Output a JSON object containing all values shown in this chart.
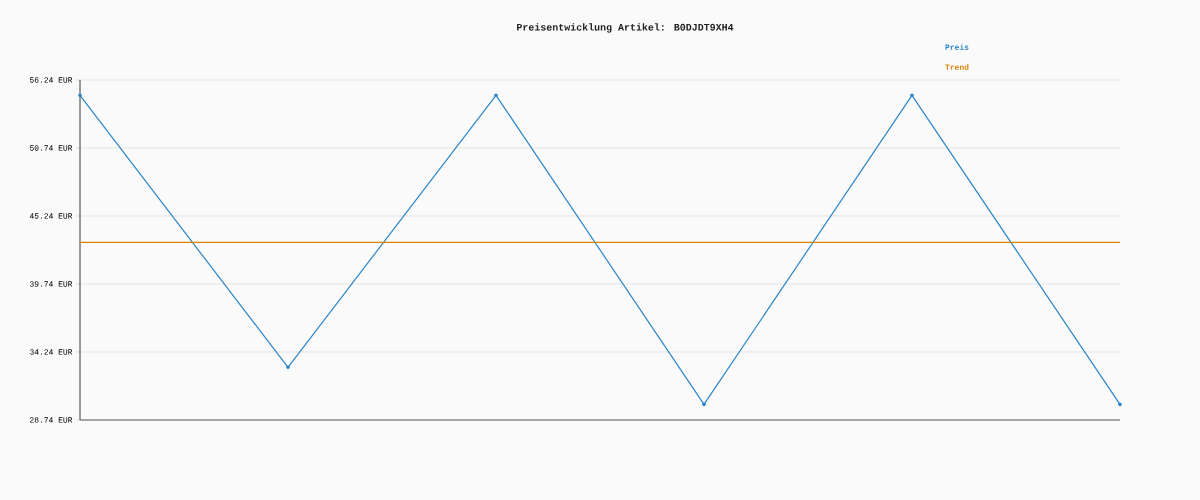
{
  "chart_data": {
    "type": "line",
    "title": "Preisentwicklung Artikel: B0DJDT9XH4",
    "categories": [
      null,
      null,
      null,
      null,
      null,
      null
    ],
    "series": [
      {
        "name": "Preis",
        "color": "#2a85c8",
        "marker": "circle",
        "values": [
          55.0,
          33.0,
          55.0,
          30.0,
          55.0,
          30.0
        ]
      },
      {
        "name": "Trend",
        "color": "#d98200",
        "marker": "none",
        "values": [
          43.1,
          43.1,
          43.1,
          43.1,
          43.1,
          43.1
        ]
      }
    ],
    "ylim": [
      28.74,
      56.24
    ],
    "yticks": [
      {
        "value": 28.74,
        "label": "28.74 EUR"
      },
      {
        "value": 34.24,
        "label": "34.24 EUR"
      },
      {
        "value": 39.74,
        "label": "39.74 EUR"
      },
      {
        "value": 45.24,
        "label": "45.24 EUR"
      },
      {
        "value": 50.74,
        "label": "50.74 EUR"
      },
      {
        "value": 56.24,
        "label": "56.24 EUR"
      }
    ],
    "grid": "y",
    "legend": "top right"
  }
}
